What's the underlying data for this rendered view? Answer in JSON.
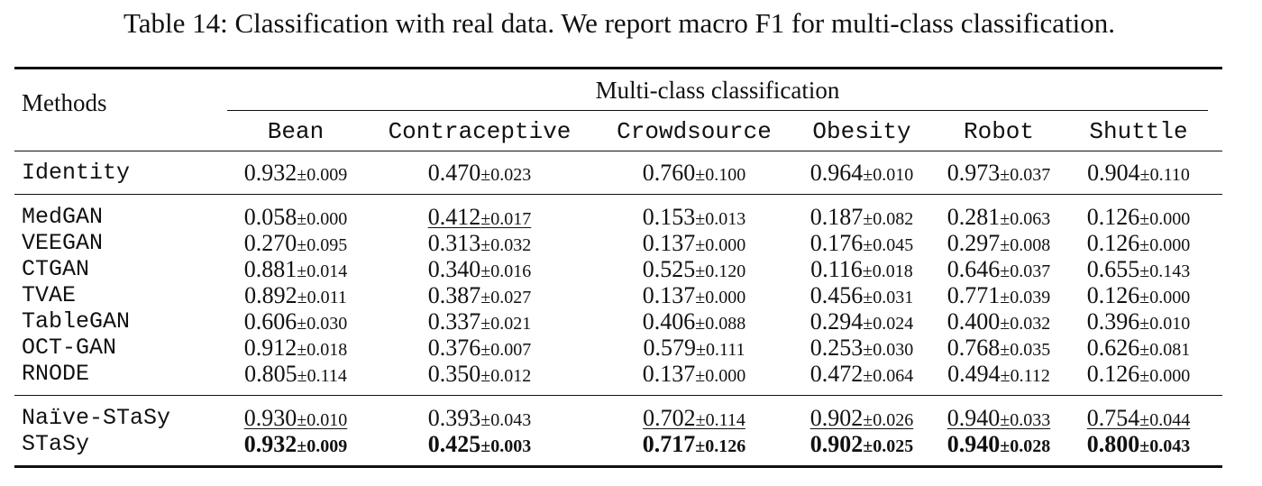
{
  "caption": "Table 14: Classification with real data. We report macro F1 for multi-class classification.",
  "table": {
    "methods_header": "Methods",
    "group_header": "Multi-class classification",
    "columns": [
      "Bean",
      "Contraceptive",
      "Crowdsource",
      "Obesity",
      "Robot",
      "Shuttle"
    ],
    "rows": [
      {
        "method": "Identity",
        "cells": [
          {
            "mean": "0.932",
            "sd": "±0.009"
          },
          {
            "mean": "0.470",
            "sd": "±0.023"
          },
          {
            "mean": "0.760",
            "sd": "±0.100"
          },
          {
            "mean": "0.964",
            "sd": "±0.010"
          },
          {
            "mean": "0.973",
            "sd": "±0.037"
          },
          {
            "mean": "0.904",
            "sd": "±0.110"
          }
        ]
      },
      {
        "method": "MedGAN",
        "cells": [
          {
            "mean": "0.058",
            "sd": "±0.000"
          },
          {
            "mean": "0.412",
            "sd": "±0.017",
            "underline": true
          },
          {
            "mean": "0.153",
            "sd": "±0.013"
          },
          {
            "mean": "0.187",
            "sd": "±0.082"
          },
          {
            "mean": "0.281",
            "sd": "±0.063"
          },
          {
            "mean": "0.126",
            "sd": "±0.000"
          }
        ]
      },
      {
        "method": "VEEGAN",
        "cells": [
          {
            "mean": "0.270",
            "sd": "±0.095"
          },
          {
            "mean": "0.313",
            "sd": "±0.032"
          },
          {
            "mean": "0.137",
            "sd": "±0.000"
          },
          {
            "mean": "0.176",
            "sd": "±0.045"
          },
          {
            "mean": "0.297",
            "sd": "±0.008"
          },
          {
            "mean": "0.126",
            "sd": "±0.000"
          }
        ]
      },
      {
        "method": "CTGAN",
        "cells": [
          {
            "mean": "0.881",
            "sd": "±0.014"
          },
          {
            "mean": "0.340",
            "sd": "±0.016"
          },
          {
            "mean": "0.525",
            "sd": "±0.120"
          },
          {
            "mean": "0.116",
            "sd": "±0.018"
          },
          {
            "mean": "0.646",
            "sd": "±0.037"
          },
          {
            "mean": "0.655",
            "sd": "±0.143"
          }
        ]
      },
      {
        "method": "TVAE",
        "cells": [
          {
            "mean": "0.892",
            "sd": "±0.011"
          },
          {
            "mean": "0.387",
            "sd": "±0.027"
          },
          {
            "mean": "0.137",
            "sd": "±0.000"
          },
          {
            "mean": "0.456",
            "sd": "±0.031"
          },
          {
            "mean": "0.771",
            "sd": "±0.039"
          },
          {
            "mean": "0.126",
            "sd": "±0.000"
          }
        ]
      },
      {
        "method": "TableGAN",
        "cells": [
          {
            "mean": "0.606",
            "sd": "±0.030"
          },
          {
            "mean": "0.337",
            "sd": "±0.021"
          },
          {
            "mean": "0.406",
            "sd": "±0.088"
          },
          {
            "mean": "0.294",
            "sd": "±0.024"
          },
          {
            "mean": "0.400",
            "sd": "±0.032"
          },
          {
            "mean": "0.396",
            "sd": "±0.010"
          }
        ]
      },
      {
        "method": "OCT-GAN",
        "cells": [
          {
            "mean": "0.912",
            "sd": "±0.018"
          },
          {
            "mean": "0.376",
            "sd": "±0.007"
          },
          {
            "mean": "0.579",
            "sd": "±0.111"
          },
          {
            "mean": "0.253",
            "sd": "±0.030"
          },
          {
            "mean": "0.768",
            "sd": "±0.035"
          },
          {
            "mean": "0.626",
            "sd": "±0.081"
          }
        ]
      },
      {
        "method": "RNODE",
        "cells": [
          {
            "mean": "0.805",
            "sd": "±0.114"
          },
          {
            "mean": "0.350",
            "sd": "±0.012"
          },
          {
            "mean": "0.137",
            "sd": "±0.000"
          },
          {
            "mean": "0.472",
            "sd": "±0.064"
          },
          {
            "mean": "0.494",
            "sd": "±0.112"
          },
          {
            "mean": "0.126",
            "sd": "±0.000"
          }
        ]
      },
      {
        "method": "Naïve-STaSy",
        "cells": [
          {
            "mean": "0.930",
            "sd": "±0.010",
            "underline": true
          },
          {
            "mean": "0.393",
            "sd": "±0.043"
          },
          {
            "mean": "0.702",
            "sd": "±0.114",
            "underline": true
          },
          {
            "mean": "0.902",
            "sd": "±0.026",
            "underline": true
          },
          {
            "mean": "0.940",
            "sd": "±0.033",
            "underline": true
          },
          {
            "mean": "0.754",
            "sd": "±0.044",
            "underline": true
          }
        ]
      },
      {
        "method": "STaSy",
        "cells": [
          {
            "mean": "0.932",
            "sd": "±0.009",
            "bold": true
          },
          {
            "mean": "0.425",
            "sd": "±0.003",
            "bold": true
          },
          {
            "mean": "0.717",
            "sd": "±0.126",
            "bold": true
          },
          {
            "mean": "0.902",
            "sd": "±0.025",
            "bold": true
          },
          {
            "mean": "0.940",
            "sd": "±0.028",
            "bold": true
          },
          {
            "mean": "0.800",
            "sd": "±0.043",
            "bold": true
          }
        ]
      }
    ]
  }
}
